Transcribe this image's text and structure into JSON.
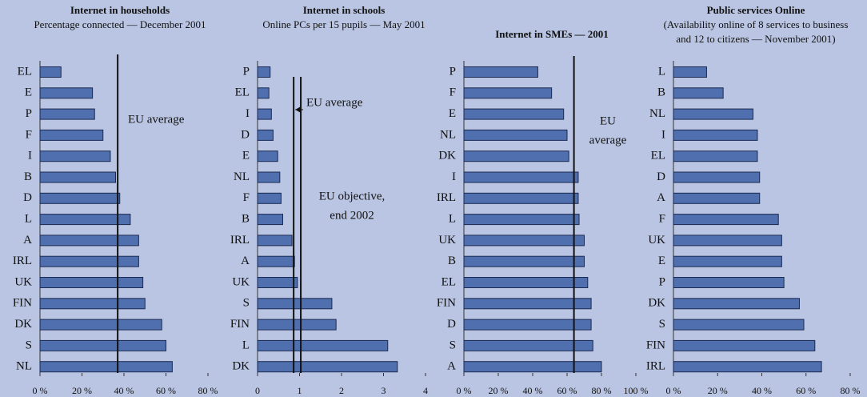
{
  "chart_data": [
    {
      "type": "bar",
      "orientation": "horizontal",
      "title": "Internet in households",
      "subtitle": [
        "Percentage  connected — December 2001"
      ],
      "categories": [
        "EL",
        "E",
        "P",
        "F",
        "I",
        "B",
        "D",
        "L",
        "A",
        "IRL",
        "UK",
        "FIN",
        "DK",
        "S",
        "NL"
      ],
      "values": [
        10,
        25,
        26,
        30,
        33.5,
        36,
        38,
        43,
        47,
        47,
        49,
        50,
        58,
        60,
        63
      ],
      "color": "#4f6fae",
      "xlim": [
        0,
        80
      ],
      "xticks": [
        {
          "value": 0,
          "label": "0 %"
        },
        {
          "value": 20,
          "label": "20 %"
        },
        {
          "value": 40,
          "label": "40 %"
        },
        {
          "value": 60,
          "label": "60 %"
        },
        {
          "value": 80,
          "label": "80 %"
        }
      ],
      "reference_lines": [
        {
          "value": 37,
          "label": [
            "EU average"
          ]
        }
      ]
    },
    {
      "type": "bar",
      "orientation": "horizontal",
      "title": "Internet in schools",
      "subtitle": [
        "Online PCs per 15 pupils — May 2001"
      ],
      "categories": [
        "P",
        "EL",
        "I",
        "D",
        "E",
        "NL",
        "F",
        "B",
        "IRL",
        "A",
        "UK",
        "S",
        "FIN",
        "L",
        "DK"
      ],
      "values": [
        0.3,
        0.27,
        0.33,
        0.37,
        0.48,
        0.53,
        0.56,
        0.6,
        0.82,
        0.88,
        0.95,
        1.77,
        1.87,
        3.1,
        3.33
      ],
      "color": "#4f6fae",
      "xlim": [
        0,
        4
      ],
      "xticks": [
        0,
        1,
        2,
        3,
        4
      ],
      "reference_lines": [
        {
          "value": 0.86,
          "label": [
            "EU average"
          ]
        },
        {
          "value": 1.03,
          "label": [
            "EU objective,",
            "end 2002"
          ]
        }
      ]
    },
    {
      "type": "bar",
      "orientation": "horizontal",
      "title": "Internet in SMEs — 2001",
      "subtitle": [],
      "categories": [
        "P",
        "F",
        "E",
        "NL",
        "DK",
        "I",
        "IRL",
        "L",
        "UK",
        "B",
        "EL",
        "FIN",
        "D",
        "S",
        "A"
      ],
      "values": [
        43,
        51,
        58,
        60,
        61,
        66.5,
        66.5,
        67,
        70,
        70,
        72,
        74,
        74,
        75,
        80
      ],
      "color": "#4f6fae",
      "xlim": [
        0,
        100
      ],
      "xticks": [
        {
          "value": 0,
          "label": "0 %"
        },
        {
          "value": 20,
          "label": "20 %"
        },
        {
          "value": 40,
          "label": "40 %"
        },
        {
          "value": 60,
          "label": "60 %"
        },
        {
          "value": 80,
          "label": "80 %"
        },
        {
          "value": 100,
          "label": "100 %"
        }
      ],
      "reference_lines": [
        {
          "value": 64,
          "label": [
            "EU",
            "average"
          ]
        }
      ]
    },
    {
      "type": "bar",
      "orientation": "horizontal",
      "title": "Public services Online",
      "subtitle": [
        "(Availability online of 8 services to business",
        "and 12 to citizens — November 2001)"
      ],
      "categories": [
        "L",
        "B",
        "NL",
        "I",
        "EL",
        "D",
        "A",
        "F",
        "UK",
        "E",
        "P",
        "DK",
        "S",
        "FIN",
        "IRL"
      ],
      "values": [
        15,
        22.5,
        36,
        38,
        38,
        39,
        39,
        47.5,
        49,
        49,
        50,
        57,
        59,
        64,
        67
      ],
      "color": "#4f6fae",
      "xlim": [
        0,
        80
      ],
      "xticks": [
        {
          "value": 0,
          "label": "0 %"
        },
        {
          "value": 20,
          "label": "20 %"
        },
        {
          "value": 40,
          "label": "40 %"
        },
        {
          "value": 60,
          "label": "60 %"
        },
        {
          "value": 80,
          "label": "80 %"
        }
      ],
      "reference_lines": []
    }
  ]
}
